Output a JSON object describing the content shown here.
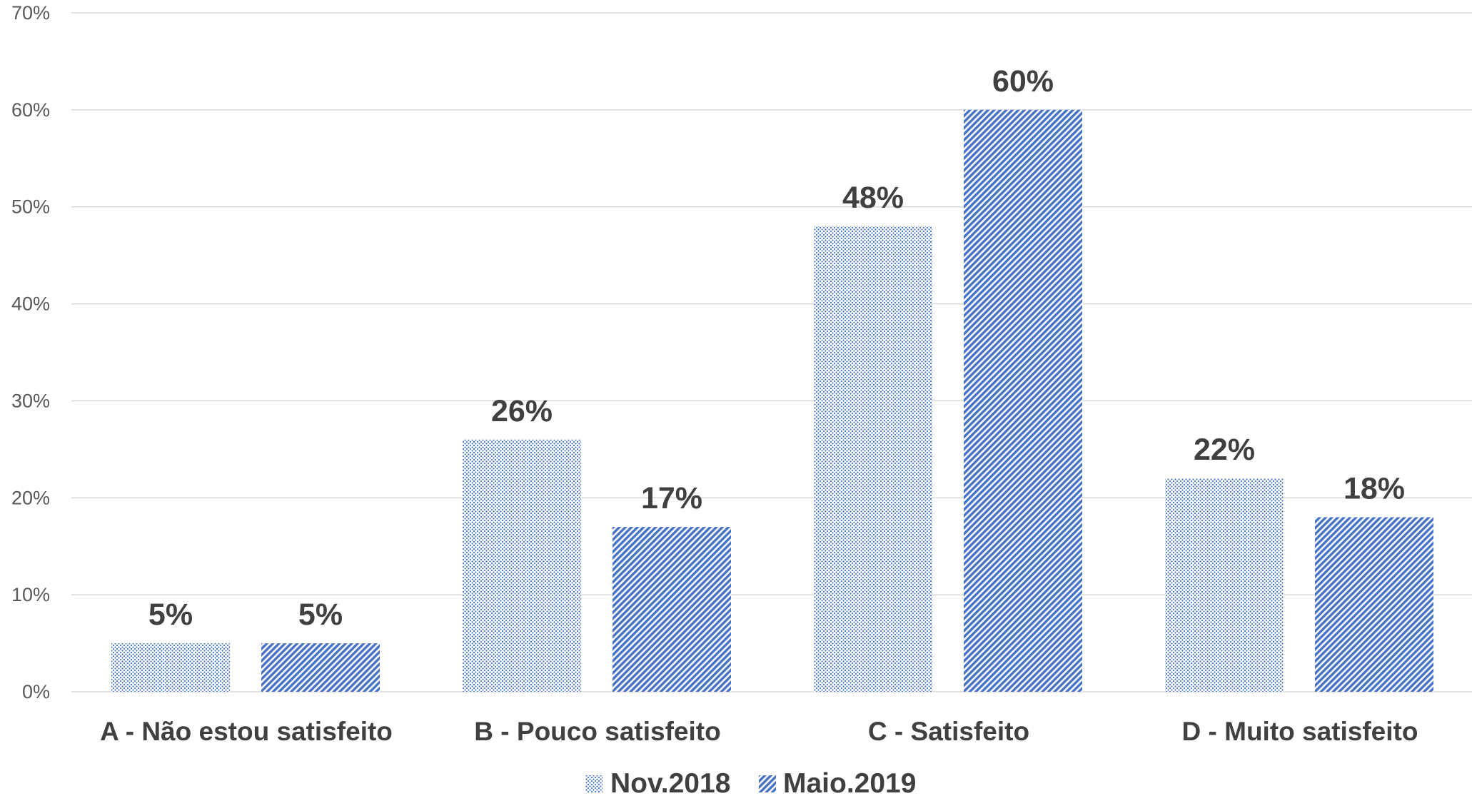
{
  "colors": {
    "series_1": "#4472c4",
    "series_2": "#4472c4",
    "gridline": "#d9d9d9",
    "text": "#404040",
    "tick_text": "#595959"
  },
  "chart_data": {
    "type": "bar",
    "title": "",
    "xlabel": "",
    "ylabel": "",
    "categories": [
      "A - Não estou satisfeito",
      "B - Pouco satisfeito",
      "C - Satisfeito",
      "D - Muito satisfeito"
    ],
    "series": [
      {
        "name": "Nov.2018",
        "pattern": "dotted",
        "values": [
          5,
          26,
          48,
          22
        ],
        "labels": [
          "5%",
          "26%",
          "48%",
          "22%"
        ]
      },
      {
        "name": "Maio.2019",
        "pattern": "diagonal-stripes",
        "values": [
          5,
          17,
          60,
          18
        ],
        "labels": [
          "5%",
          "17%",
          "60%",
          "18%"
        ]
      }
    ],
    "ylim": [
      0,
      70
    ],
    "yticks": [
      0,
      10,
      20,
      30,
      40,
      50,
      60,
      70
    ],
    "ytick_labels": [
      "0%",
      "10%",
      "20%",
      "30%",
      "40%",
      "50%",
      "60%",
      "70%"
    ],
    "grid": true,
    "legend_position": "bottom-center"
  }
}
